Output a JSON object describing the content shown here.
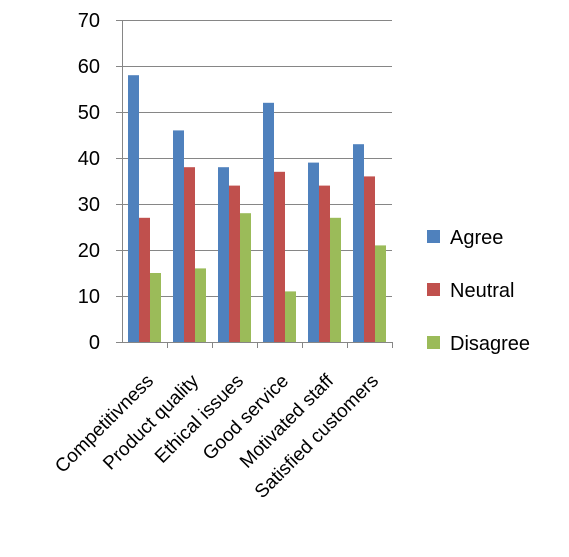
{
  "chart_data": {
    "type": "bar",
    "title": "",
    "xlabel": "",
    "ylabel": "",
    "categories": [
      "Competitivness",
      "Product quality",
      "Ethical issues",
      "Good service",
      "Motivated staff",
      "Satisfied customers"
    ],
    "series": [
      {
        "name": "Agree",
        "values": [
          58,
          46,
          38,
          52,
          39,
          43
        ]
      },
      {
        "name": "Neutral",
        "values": [
          27,
          38,
          34,
          37,
          34,
          36
        ]
      },
      {
        "name": "Disagree",
        "values": [
          15,
          16,
          28,
          11,
          27,
          21
        ]
      }
    ],
    "ylim": [
      0,
      70
    ],
    "yticks": [
      "0",
      "10",
      "20",
      "30",
      "40",
      "50",
      "60",
      "70"
    ],
    "grid": true,
    "legend_position": "right",
    "colors": [
      "#4F81BD",
      "#C0504D",
      "#9BBB59"
    ]
  }
}
